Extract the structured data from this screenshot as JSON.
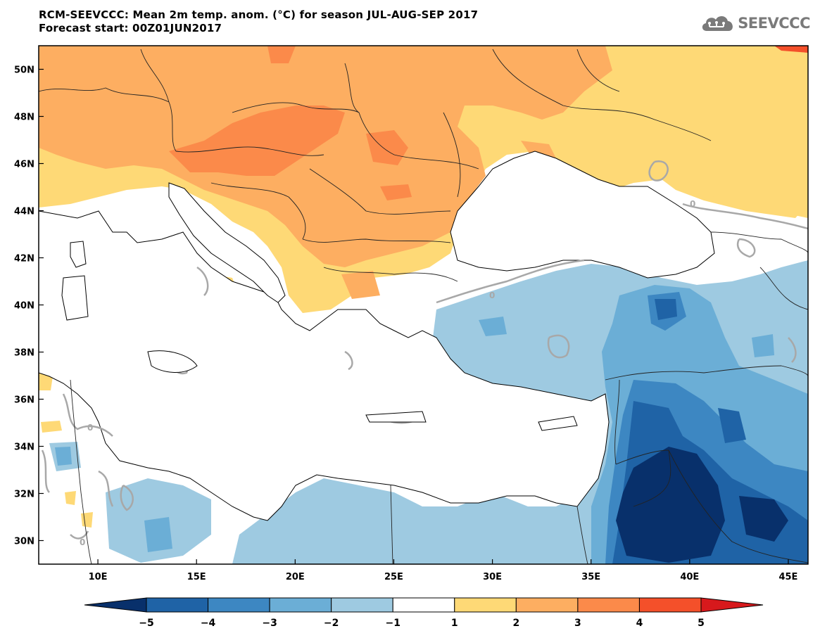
{
  "title": {
    "line1": "RCM-SEEVCCC: Mean 2m temp. anom. (°C) for season JUL-AUG-SEP 2017",
    "line2": "Forecast start: 00Z01JUN2017"
  },
  "logo": {
    "text": "SEEVCCC",
    "icon": "cloud-logo-icon"
  },
  "map": {
    "lon_range": [
      7,
      46
    ],
    "lat_range": [
      29,
      51
    ],
    "lon_ticks": [
      "10E",
      "15E",
      "20E",
      "25E",
      "30E",
      "35E",
      "40E",
      "45E"
    ],
    "lat_ticks": [
      "50N",
      "48N",
      "46N",
      "44N",
      "42N",
      "40N",
      "38N",
      "36N",
      "34N",
      "32N",
      "30N"
    ],
    "contour_label": "0"
  },
  "colorbar": {
    "labels": [
      "-5",
      "-4",
      "-3",
      "-2",
      "-1",
      "1",
      "2",
      "3",
      "4",
      "5"
    ],
    "colors": {
      "lt_-5": "#08306b",
      "-5_-4": "#1f63a6",
      "-4_-3": "#3d87c2",
      "-3_-2": "#6baed6",
      "-2_-1": "#9ecae1",
      "-1_1": "#ffffff",
      "1_2": "#fed976",
      "2_3": "#fdae61",
      "3_4": "#fb8a4a",
      "4_5": "#f4502a",
      "gt_5": "#d7191c"
    }
  }
}
